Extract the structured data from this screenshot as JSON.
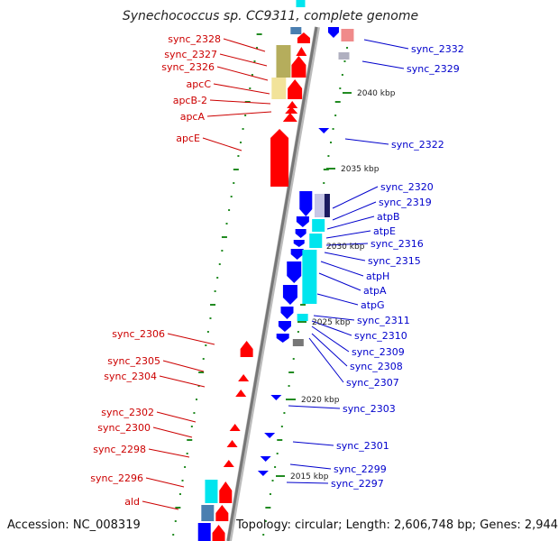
{
  "title": "Synechococcus sp. CC9311, complete genome",
  "accession": "Accession: NC_008319",
  "topology": "Topology: circular; Length: 2,606,748 bp; Genes: 2,944",
  "colors": {
    "reverse_label": "#cc0000",
    "forward_label": "#0000cc",
    "reverse_gene": "#ff0000",
    "forward_gene": "#0000ff",
    "rna": "#00e5ee",
    "tick": "#228b22"
  },
  "kbp_marks": [
    "2040 kbp",
    "2035 kbp",
    "2030 kbp",
    "2025 kbp",
    "2020 kbp",
    "2015 kbp"
  ],
  "left_labels": [
    "sync_2328",
    "sync_2327",
    "sync_2326",
    "apcC",
    "apcB-2",
    "apcA",
    "apcE",
    "sync_2306",
    "sync_2305",
    "sync_2304",
    "sync_2302",
    "sync_2300",
    "sync_2298",
    "sync_2296",
    "ald"
  ],
  "right_labels": [
    "sync_2332",
    "sync_2329",
    "sync_2322",
    "sync_2320",
    "sync_2319",
    "atpB",
    "atpE",
    "sync_2316",
    "sync_2315",
    "atpH",
    "atpA",
    "atpG",
    "sync_2311",
    "sync_2310",
    "sync_2309",
    "sync_2308",
    "sync_2307",
    "sync_2303",
    "sync_2301",
    "sync_2299",
    "sync_2297"
  ]
}
